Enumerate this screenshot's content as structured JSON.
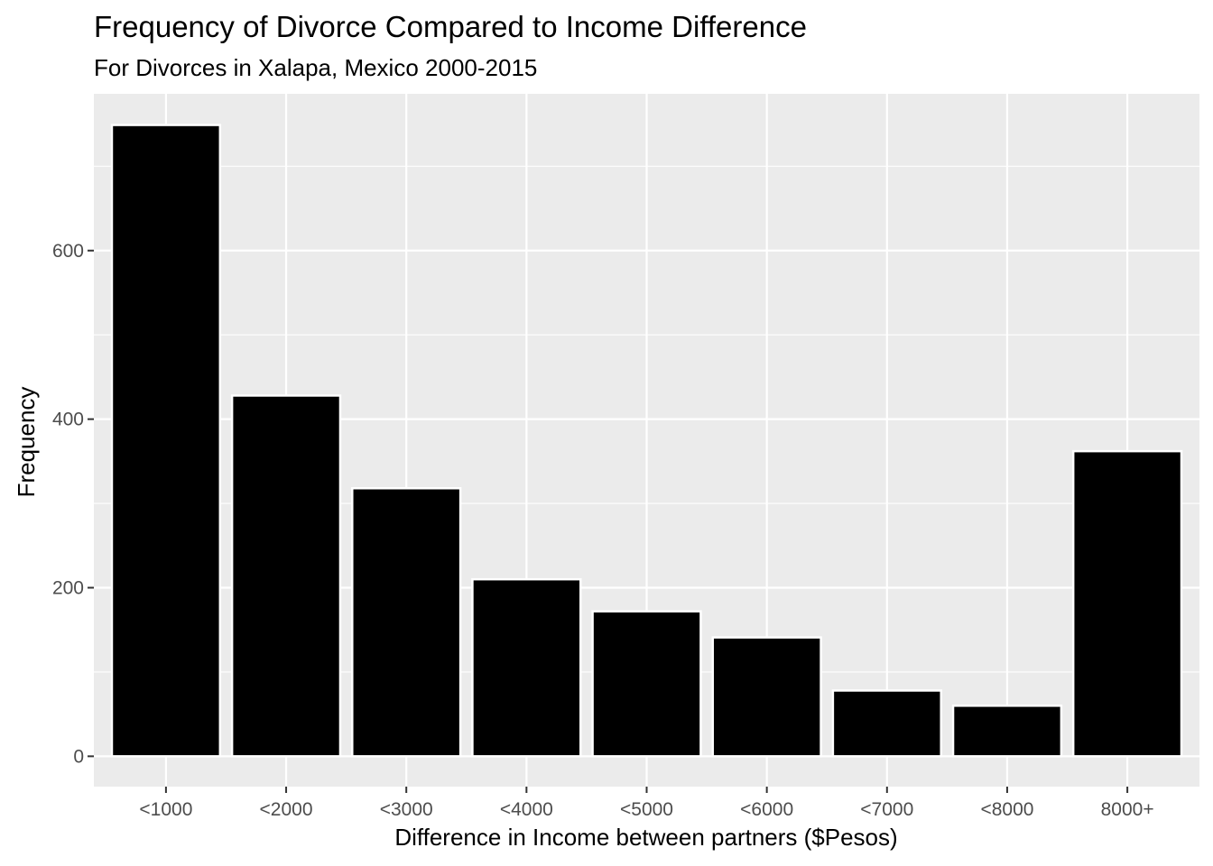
{
  "chart_data": {
    "type": "bar",
    "title": "Frequency of Divorce Compared to Income Difference",
    "subtitle": "For Divorces in Xalapa, Mexico 2000-2015",
    "xlabel": "Difference in Income between partners ($Pesos)",
    "ylabel": "Frequency",
    "categories": [
      "<1000",
      "<2000",
      "<3000",
      "<4000",
      "<5000",
      "<6000",
      "<7000",
      "<8000",
      "8000+"
    ],
    "values": [
      749,
      428,
      318,
      210,
      172,
      141,
      78,
      60,
      362
    ],
    "ylim": [
      -36,
      786
    ],
    "yticks": [
      0,
      200,
      400,
      600
    ],
    "ytick_labels": [
      "0",
      "200",
      "400",
      "600"
    ],
    "grid": true,
    "colors": {
      "panel": "#EBEBEB",
      "grid": "#FFFFFF",
      "bar_fill": "#000000",
      "bar_outline": "#FFFFFF",
      "tick_text": "#4D4D4D"
    }
  }
}
